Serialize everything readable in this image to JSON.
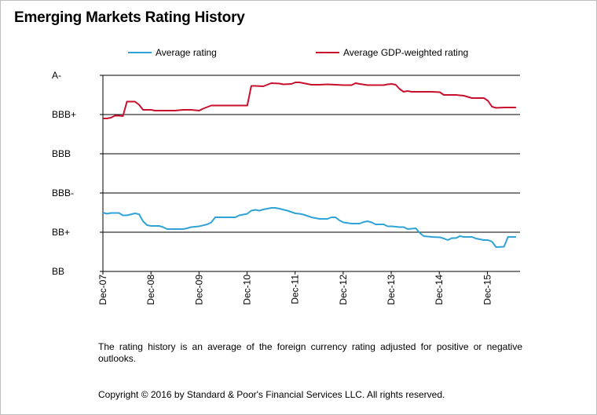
{
  "page": {
    "title": "Emerging Markets Rating History",
    "note": "The rating history is an average of the foreign currency rating adjusted for  positive or negative outlooks.",
    "copyright": "Copyright © 2016 by Standard & Poor's Financial Services LLC. All rights reserved."
  },
  "chart_data": {
    "type": "line",
    "title": "Emerging Markets Rating History",
    "xlabel": "",
    "ylabel": "",
    "x_tick_labels": [
      "Dec-07",
      "Dec-08",
      "Dec-09",
      "Dec-10",
      "Dec-11",
      "Dec-12",
      "Dec-13",
      "Dec-14",
      "Dec-15"
    ],
    "y_tick_labels": [
      "BB",
      "BB+",
      "BBB-",
      "BBB",
      "BBB+",
      "A-"
    ],
    "y_scale_note": "notch index: BB=0, BB+=1, BBB-=2, BBB=3, BBB+=4, A-=5",
    "ylim": [
      0,
      5
    ],
    "xlim": [
      0,
      104
    ],
    "grid": "horizontal",
    "legend_position": "top",
    "series": [
      {
        "name": "Average rating",
        "color": "#2fa3d6",
        "points": [
          [
            0,
            1.5
          ],
          [
            1,
            1.47
          ],
          [
            2,
            1.49
          ],
          [
            4,
            1.49
          ],
          [
            5,
            1.43
          ],
          [
            6,
            1.43
          ],
          [
            8,
            1.48
          ],
          [
            9,
            1.46
          ],
          [
            10,
            1.28
          ],
          [
            11,
            1.18
          ],
          [
            12,
            1.16
          ],
          [
            14,
            1.16
          ],
          [
            15,
            1.13
          ],
          [
            16,
            1.08
          ],
          [
            18,
            1.08
          ],
          [
            20,
            1.08
          ],
          [
            21,
            1.1
          ],
          [
            22,
            1.13
          ],
          [
            24,
            1.15
          ],
          [
            26,
            1.2
          ],
          [
            27,
            1.25
          ],
          [
            28,
            1.38
          ],
          [
            30,
            1.38
          ],
          [
            33,
            1.38
          ],
          [
            34,
            1.43
          ],
          [
            36,
            1.47
          ],
          [
            37,
            1.55
          ],
          [
            38,
            1.57
          ],
          [
            39,
            1.55
          ],
          [
            40,
            1.58
          ],
          [
            42,
            1.62
          ],
          [
            43,
            1.62
          ],
          [
            44,
            1.6
          ],
          [
            46,
            1.55
          ],
          [
            48,
            1.48
          ],
          [
            49,
            1.47
          ],
          [
            50,
            1.45
          ],
          [
            52,
            1.38
          ],
          [
            54,
            1.34
          ],
          [
            56,
            1.34
          ],
          [
            57,
            1.38
          ],
          [
            58,
            1.38
          ],
          [
            59,
            1.3
          ],
          [
            60,
            1.25
          ],
          [
            62,
            1.22
          ],
          [
            64,
            1.22
          ],
          [
            65,
            1.26
          ],
          [
            66,
            1.28
          ],
          [
            67,
            1.25
          ],
          [
            68,
            1.2
          ],
          [
            70,
            1.2
          ],
          [
            71,
            1.15
          ],
          [
            72,
            1.15
          ],
          [
            74,
            1.13
          ],
          [
            75,
            1.13
          ],
          [
            76,
            1.08
          ],
          [
            78,
            1.1
          ],
          [
            79,
            0.98
          ],
          [
            80,
            0.9
          ],
          [
            82,
            0.88
          ],
          [
            84,
            0.87
          ],
          [
            85,
            0.84
          ],
          [
            86,
            0.8
          ],
          [
            87,
            0.85
          ],
          [
            88,
            0.85
          ],
          [
            89,
            0.9
          ],
          [
            90,
            0.88
          ],
          [
            92,
            0.88
          ],
          [
            93,
            0.84
          ],
          [
            95,
            0.8
          ],
          [
            96,
            0.8
          ],
          [
            97,
            0.76
          ],
          [
            98,
            0.62
          ],
          [
            100,
            0.63
          ],
          [
            101,
            0.88
          ],
          [
            102,
            0.88
          ],
          [
            103,
            0.88
          ]
        ]
      },
      {
        "name": "Average GDP-weighted rating",
        "color": "#c8102e",
        "points": [
          [
            0,
            3.9
          ],
          [
            1,
            3.9
          ],
          [
            2,
            3.92
          ],
          [
            3,
            3.97
          ],
          [
            4,
            3.97
          ],
          [
            5,
            3.96
          ],
          [
            6,
            4.33
          ],
          [
            7,
            4.33
          ],
          [
            8,
            4.33
          ],
          [
            9,
            4.25
          ],
          [
            10,
            4.12
          ],
          [
            11,
            4.12
          ],
          [
            12,
            4.12
          ],
          [
            13,
            4.1
          ],
          [
            16,
            4.1
          ],
          [
            18,
            4.1
          ],
          [
            20,
            4.12
          ],
          [
            22,
            4.12
          ],
          [
            24,
            4.1
          ],
          [
            25,
            4.15
          ],
          [
            27,
            4.23
          ],
          [
            30,
            4.23
          ],
          [
            33,
            4.23
          ],
          [
            36,
            4.23
          ],
          [
            37,
            4.73
          ],
          [
            38,
            4.73
          ],
          [
            40,
            4.72
          ],
          [
            41,
            4.76
          ],
          [
            42,
            4.8
          ],
          [
            44,
            4.79
          ],
          [
            45,
            4.77
          ],
          [
            47,
            4.78
          ],
          [
            48,
            4.82
          ],
          [
            49,
            4.82
          ],
          [
            50,
            4.8
          ],
          [
            52,
            4.76
          ],
          [
            54,
            4.76
          ],
          [
            56,
            4.77
          ],
          [
            58,
            4.76
          ],
          [
            60,
            4.75
          ],
          [
            62,
            4.75
          ],
          [
            63,
            4.8
          ],
          [
            64,
            4.78
          ],
          [
            66,
            4.75
          ],
          [
            68,
            4.75
          ],
          [
            70,
            4.75
          ],
          [
            71,
            4.77
          ],
          [
            72,
            4.78
          ],
          [
            73,
            4.76
          ],
          [
            74,
            4.65
          ],
          [
            75,
            4.58
          ],
          [
            76,
            4.6
          ],
          [
            77,
            4.58
          ],
          [
            78,
            4.58
          ],
          [
            80,
            4.58
          ],
          [
            82,
            4.58
          ],
          [
            84,
            4.57
          ],
          [
            85,
            4.5
          ],
          [
            86,
            4.5
          ],
          [
            88,
            4.5
          ],
          [
            90,
            4.48
          ],
          [
            91,
            4.45
          ],
          [
            92,
            4.42
          ],
          [
            93,
            4.42
          ],
          [
            95,
            4.42
          ],
          [
            96,
            4.35
          ],
          [
            97,
            4.2
          ],
          [
            98,
            4.17
          ],
          [
            100,
            4.18
          ],
          [
            102,
            4.18
          ],
          [
            103,
            4.18
          ]
        ]
      }
    ]
  }
}
